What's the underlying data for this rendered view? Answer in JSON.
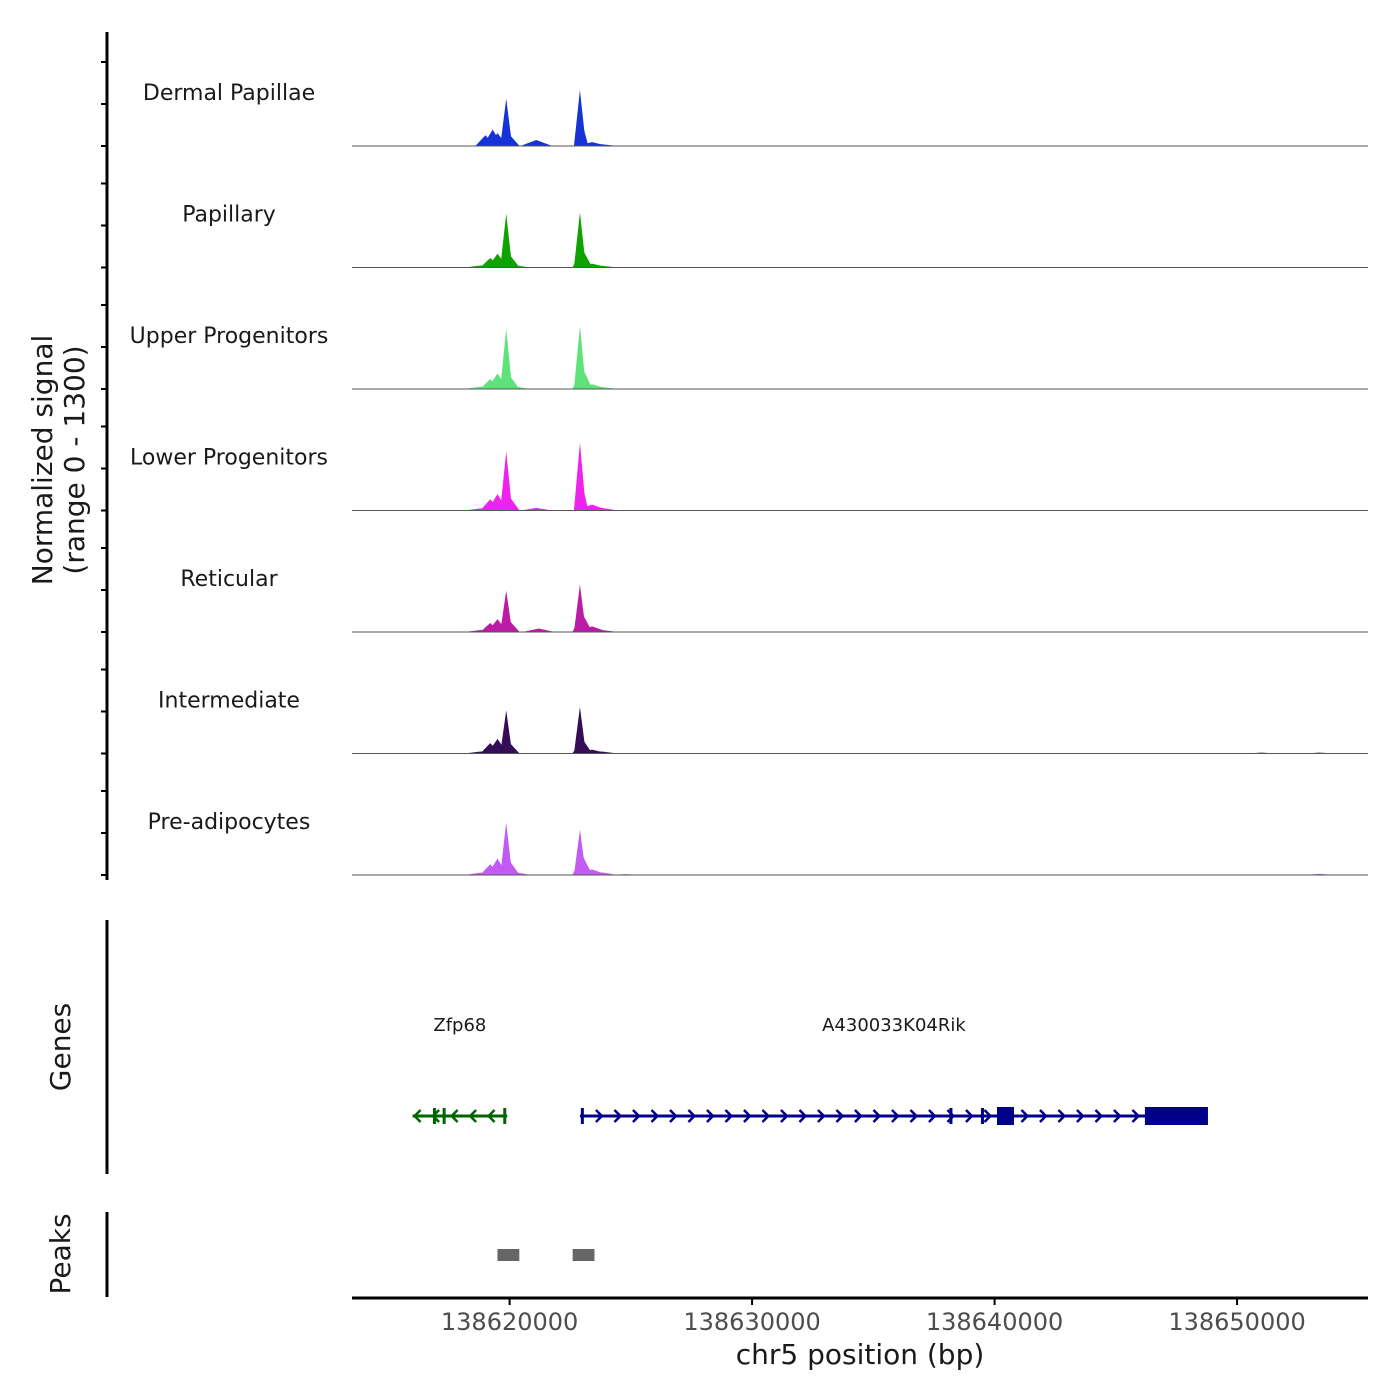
{
  "chart_data": {
    "type": "genome-track",
    "chromosome": "chr5",
    "x_range": [
      138613500,
      138655400
    ],
    "x_ticks": [
      138620000,
      138630000,
      138640000,
      138650000
    ],
    "x_tick_labels": [
      "138620000",
      "138630000",
      "138640000",
      "138650000"
    ],
    "xlabel": "chr5 position (bp)",
    "signal_ylabel_line1": "Normalized signal",
    "signal_ylabel_line2": "(range 0 - 1300)",
    "signal_range": [
      0,
      1300
    ],
    "genes_ylabel": "Genes",
    "peaks_ylabel": "Peaks",
    "tracks": [
      {
        "name": "Dermal Papillae",
        "color": "#1533d6",
        "peaks": [
          [
            138617400,
            10
          ],
          [
            138619000,
            250
          ],
          [
            138619300,
            380
          ],
          [
            138619500,
            300
          ],
          [
            138619860,
            1100
          ],
          [
            138620000,
            260
          ],
          [
            138621100,
            140
          ],
          [
            138622900,
            1300
          ],
          [
            138623000,
            520
          ],
          [
            138623400,
            90
          ],
          [
            138623800,
            40
          ]
        ]
      },
      {
        "name": "Papillary",
        "color": "#0fa300",
        "peaks": [
          [
            138618800,
            45
          ],
          [
            138619200,
            220
          ],
          [
            138619500,
            320
          ],
          [
            138619860,
            1250
          ],
          [
            138620000,
            300
          ],
          [
            138620200,
            55
          ],
          [
            138622900,
            1280
          ],
          [
            138623000,
            430
          ],
          [
            138623400,
            90
          ],
          [
            138623800,
            40
          ]
        ]
      },
      {
        "name": "Upper Progenitors",
        "color": "#5ee37a",
        "peaks": [
          [
            138618800,
            55
          ],
          [
            138619200,
            230
          ],
          [
            138619500,
            360
          ],
          [
            138619860,
            1400
          ],
          [
            138620000,
            310
          ],
          [
            138620200,
            60
          ],
          [
            138622900,
            1460
          ],
          [
            138623000,
            500
          ],
          [
            138623400,
            110
          ],
          [
            138623800,
            45
          ]
        ]
      },
      {
        "name": "Lower Progenitors",
        "color": "#ee24ee",
        "peaks": [
          [
            138616600,
            5
          ],
          [
            138618800,
            50
          ],
          [
            138619200,
            260
          ],
          [
            138619500,
            380
          ],
          [
            138619860,
            1370
          ],
          [
            138620000,
            320
          ],
          [
            138621100,
            60
          ],
          [
            138622900,
            1580
          ],
          [
            138623000,
            600
          ],
          [
            138623400,
            140
          ],
          [
            138623800,
            60
          ]
        ]
      },
      {
        "name": "Reticular",
        "color": "#bb1ba5",
        "peaks": [
          [
            138618800,
            45
          ],
          [
            138619200,
            210
          ],
          [
            138619500,
            300
          ],
          [
            138619860,
            960
          ],
          [
            138620000,
            260
          ],
          [
            138621200,
            80
          ],
          [
            138622900,
            1100
          ],
          [
            138623000,
            430
          ],
          [
            138623400,
            130
          ],
          [
            138623800,
            45
          ]
        ]
      },
      {
        "name": "Intermediate",
        "color": "#360d57",
        "peaks": [
          [
            138618800,
            45
          ],
          [
            138619200,
            240
          ],
          [
            138619500,
            340
          ],
          [
            138619860,
            1000
          ],
          [
            138620000,
            250
          ],
          [
            138622900,
            1080
          ],
          [
            138623000,
            340
          ],
          [
            138623400,
            90
          ],
          [
            138623800,
            45
          ],
          [
            138651000,
            20
          ],
          [
            138653400,
            20
          ]
        ]
      },
      {
        "name": "Pre-adipocytes",
        "color": "#c25bf2",
        "peaks": [
          [
            138618800,
            55
          ],
          [
            138619200,
            250
          ],
          [
            138619500,
            380
          ],
          [
            138619860,
            1220
          ],
          [
            138620000,
            330
          ],
          [
            138620200,
            70
          ],
          [
            138622900,
            1050
          ],
          [
            138623000,
            460
          ],
          [
            138623400,
            130
          ],
          [
            138623800,
            60
          ],
          [
            138624800,
            20
          ],
          [
            138653400,
            25
          ]
        ]
      }
    ],
    "genes": [
      {
        "name": "Zfp68",
        "strand": "-",
        "color": "#006400",
        "start": 138616000,
        "end": 138619900,
        "exon_ticks": [
          138616900,
          138617300,
          138619800
        ]
      },
      {
        "name": "A430033K04Rik",
        "strand": "+",
        "color": "#00008b",
        "start": 138622900,
        "end": 138648800,
        "exon_ticks": [
          138623000,
          138638200,
          138639500
        ],
        "blocks": [
          [
            138640100,
            138640800
          ],
          [
            138646200,
            138648800
          ]
        ]
      }
    ],
    "peak_regions": [
      [
        138619500,
        138620400
      ],
      [
        138622600,
        138623500
      ]
    ],
    "peak_color": "#666666"
  }
}
